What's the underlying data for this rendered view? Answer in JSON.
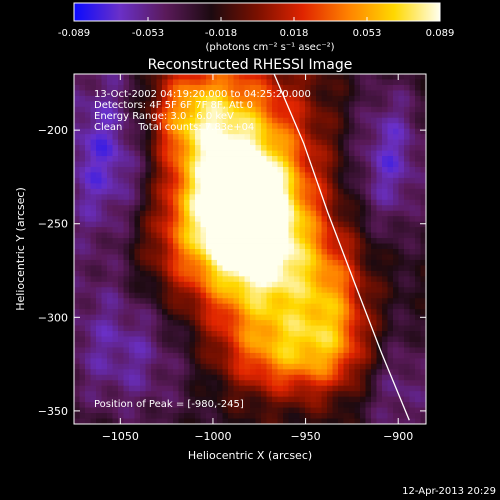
{
  "colors": {
    "background": "#000000",
    "text": "#ffffff",
    "frame": "#ffffff",
    "colormap": [
      "#0a0aff",
      "#6a30c8",
      "#5a1a5a",
      "#1c0a10",
      "#7a1000",
      "#e02400",
      "#ff8200",
      "#ffd800",
      "#ffffee"
    ]
  },
  "colorbar": {
    "tick_labels": [
      "-0.089",
      "-0.053",
      "-0.018",
      "0.018",
      "0.053",
      "0.089"
    ],
    "unit_label": "(photons cm⁻² s⁻¹ asec⁻²)"
  },
  "image": {
    "title": "Reconstructed RHESSI Image",
    "annotations": [
      "13-Oct-2002 04:19:20.000 to 04:25:20.000",
      "Detectors: 4F 5F 6F 7F 8F, Att 0",
      "Energy Range: 3.0 - 6.0 keV",
      "Clean     Total counts: 7.83e+04"
    ],
    "peak_label": "Position of Peak = [-980,-245]"
  },
  "footer": {
    "timestamp": "12-Apr-2013 20:29"
  },
  "chart_data": {
    "type": "heatmap",
    "title": "Reconstructed RHESSI Image",
    "xlabel": "Heliocentric X (arcsec)",
    "ylabel": "Heliocentric Y (arcsec)",
    "xlim": [
      -1075,
      -885
    ],
    "ylim": [
      -357,
      -170
    ],
    "xticks": [
      -1050,
      -1000,
      -950,
      -900
    ],
    "yticks": [
      -350,
      -300,
      -250,
      -200
    ],
    "colorbar_range": [
      -0.089,
      0.089
    ],
    "peak": {
      "x": -980,
      "y": -245,
      "value": 0.089
    },
    "limb_arc": [
      [
        -967,
        -170
      ],
      [
        -951,
        -207
      ],
      [
        -938,
        -244
      ],
      [
        -923,
        -283
      ],
      [
        -909,
        -319
      ],
      [
        -894,
        -355
      ]
    ],
    "sources": [
      {
        "x": -982,
        "y": -245,
        "sx": 20,
        "sy": 22,
        "amp": 1.0
      },
      {
        "x": -990,
        "y": -210,
        "sx": 30,
        "sy": 32,
        "amp": 0.75
      },
      {
        "x": -1015,
        "y": -190,
        "sx": 20,
        "sy": 18,
        "amp": 0.45
      },
      {
        "x": -968,
        "y": -280,
        "sx": 28,
        "sy": 25,
        "amp": 0.7
      },
      {
        "x": -955,
        "y": -320,
        "sx": 28,
        "sy": 16,
        "amp": 0.55
      },
      {
        "x": -1025,
        "y": -260,
        "sx": 22,
        "sy": 30,
        "amp": 0.35
      },
      {
        "x": -935,
        "y": -295,
        "sx": 12,
        "sy": 22,
        "amp": 0.3
      },
      {
        "x": -1050,
        "y": -215,
        "sx": 25,
        "sy": 40,
        "amp": -0.55
      },
      {
        "x": -905,
        "y": -215,
        "sx": 15,
        "sy": 30,
        "amp": -0.4
      },
      {
        "x": -1045,
        "y": -315,
        "sx": 30,
        "sy": 30,
        "amp": -0.35
      },
      {
        "x": -900,
        "y": -335,
        "sx": 15,
        "sy": 25,
        "amp": -0.3
      }
    ]
  }
}
